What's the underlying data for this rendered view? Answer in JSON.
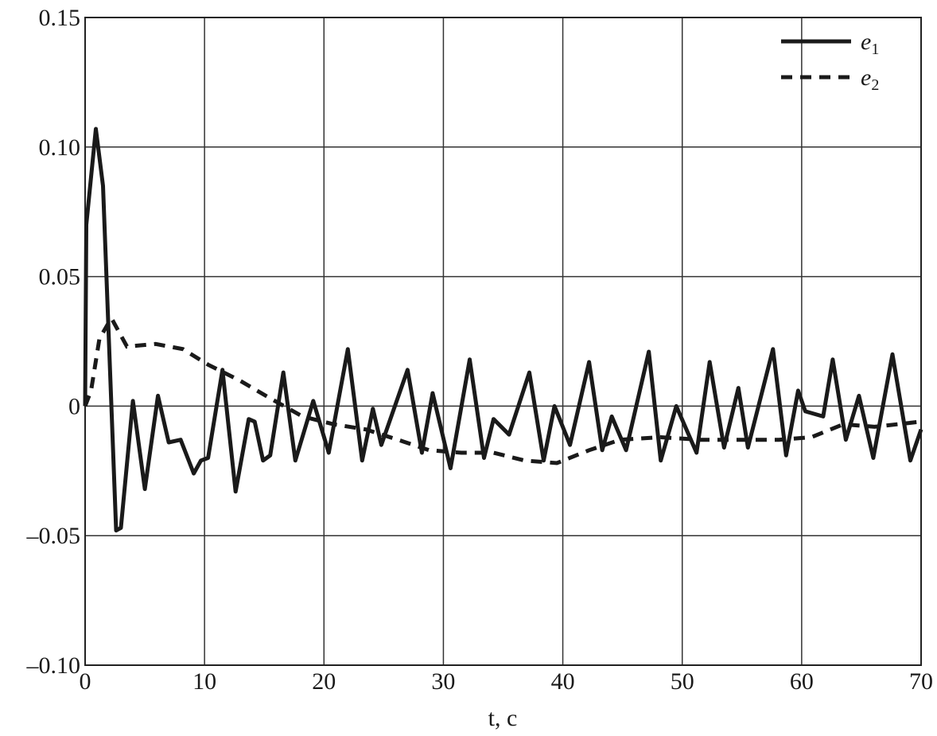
{
  "chart_data": {
    "type": "line",
    "title": "",
    "xlabel": "t, c",
    "ylabel": "",
    "xlim": [
      0,
      70
    ],
    "ylim": [
      -0.1,
      0.15
    ],
    "xticks": [
      0,
      10,
      20,
      30,
      40,
      50,
      60,
      70
    ],
    "xtick_labels": [
      "0",
      "10",
      "20",
      "30",
      "40",
      "50",
      "60",
      "70"
    ],
    "yticks": [
      0.15,
      0.1,
      0.05,
      0,
      -0.05,
      -0.1
    ],
    "ytick_labels": [
      "0.15",
      "0.10",
      "0.05",
      "0",
      "–0.05",
      "–0.10"
    ],
    "grid": true,
    "legend_placement": "top-right",
    "series": [
      {
        "name": "e1",
        "style": "solid",
        "color": "#1a1a1a",
        "x": [
          0,
          0.1,
          0.9,
          1.5,
          2.6,
          3.0,
          4.0,
          5.0,
          6.1,
          7.0,
          8.0,
          9.1,
          9.7,
          10.3,
          11.5,
          12.6,
          13.7,
          14.2,
          14.9,
          15.5,
          16.6,
          17.6,
          19.1,
          20.4,
          22.0,
          23.2,
          24.1,
          24.8,
          27.0,
          28.2,
          29.1,
          30.6,
          32.2,
          33.4,
          34.2,
          35.5,
          37.2,
          38.4,
          39.3,
          40.6,
          42.2,
          43.3,
          44.1,
          45.3,
          47.2,
          48.2,
          49.5,
          51.2,
          52.3,
          53.5,
          54.7,
          55.5,
          57.6,
          58.7,
          59.7,
          60.3,
          61.8,
          62.6,
          63.7,
          64.8,
          66.0,
          67.6,
          69.1,
          70.0
        ],
        "y": [
          0,
          0.07,
          0.107,
          0.085,
          -0.048,
          -0.047,
          0.002,
          -0.032,
          0.004,
          -0.014,
          -0.013,
          -0.026,
          -0.021,
          -0.02,
          0.014,
          -0.033,
          -0.005,
          -0.006,
          -0.021,
          -0.019,
          0.013,
          -0.021,
          0.002,
          -0.018,
          0.022,
          -0.021,
          -0.001,
          -0.015,
          0.014,
          -0.018,
          0.005,
          -0.024,
          0.018,
          -0.02,
          -0.005,
          -0.011,
          0.013,
          -0.021,
          0.0,
          -0.015,
          0.017,
          -0.017,
          -0.004,
          -0.017,
          0.021,
          -0.021,
          0.0,
          -0.018,
          0.017,
          -0.016,
          0.007,
          -0.016,
          0.022,
          -0.019,
          0.006,
          -0.002,
          -0.004,
          0.018,
          -0.013,
          0.004,
          -0.02,
          0.02,
          -0.021,
          -0.009
        ]
      },
      {
        "name": "e2",
        "style": "dashed",
        "color": "#1a1a1a",
        "x": [
          0,
          0.5,
          1.2,
          2.2,
          3.5,
          5.9,
          8.2,
          10.3,
          12.9,
          15.5,
          18.2,
          20.8,
          23.5,
          26.2,
          28.8,
          31.5,
          34.2,
          36.8,
          39.5,
          42.2,
          44.8,
          48.2,
          51.5,
          54.8,
          58.1,
          60.8,
          63.5,
          66.1,
          70.0
        ],
        "y": [
          0,
          0.006,
          0.026,
          0.034,
          0.023,
          0.024,
          0.022,
          0.016,
          0.01,
          0.003,
          -0.004,
          -0.007,
          -0.009,
          -0.013,
          -0.017,
          -0.018,
          -0.018,
          -0.021,
          -0.022,
          -0.017,
          -0.013,
          -0.012,
          -0.013,
          -0.013,
          -0.013,
          -0.012,
          -0.007,
          -0.008,
          -0.006
        ]
      }
    ]
  }
}
